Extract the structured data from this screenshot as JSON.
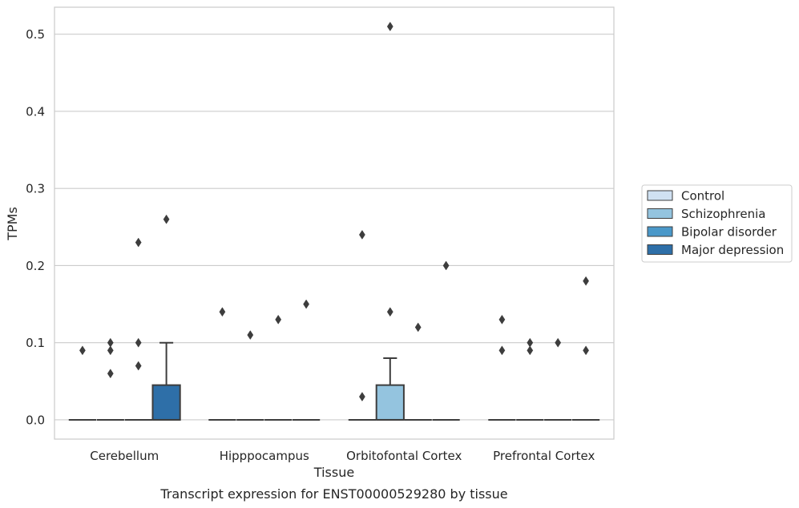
{
  "chart_data": {
    "type": "box",
    "xlabel": "Tissue",
    "ylabel": "TPMs",
    "caption": "Transcript expression for ENST00000529280 by tissue",
    "ylim": [
      -0.025,
      0.535
    ],
    "yticks": [
      "0.0",
      "0.1",
      "0.2",
      "0.3",
      "0.4",
      "0.5"
    ],
    "grid": true,
    "legend_position": "right",
    "categories": [
      "Cerebellum",
      "Hipppocampus",
      "Orbitofontal Cortex",
      "Prefrontal Cortex"
    ],
    "series": [
      {
        "name": "Control",
        "color": "#d0e1f2"
      },
      {
        "name": "Schizophrenia",
        "color": "#94c4df"
      },
      {
        "name": "Bipolar disorder",
        "color": "#4a98c9"
      },
      {
        "name": "Major depression",
        "color": "#2e6fa8"
      }
    ],
    "boxes": [
      {
        "category": 0,
        "series": 0,
        "q1": 0,
        "median": 0,
        "q3": 0,
        "whisker_low": 0,
        "whisker_high": 0,
        "outliers": [
          0.09
        ]
      },
      {
        "category": 0,
        "series": 1,
        "q1": 0,
        "median": 0,
        "q3": 0,
        "whisker_low": 0,
        "whisker_high": 0,
        "outliers": [
          0.1,
          0.09,
          0.06
        ]
      },
      {
        "category": 0,
        "series": 2,
        "q1": 0,
        "median": 0,
        "q3": 0,
        "whisker_low": 0,
        "whisker_high": 0,
        "outliers": [
          0.23,
          0.1,
          0.07
        ]
      },
      {
        "category": 0,
        "series": 3,
        "q1": 0,
        "median": 0,
        "q3": 0.045,
        "whisker_low": 0,
        "whisker_high": 0.1,
        "outliers": [
          0.26
        ]
      },
      {
        "category": 1,
        "series": 0,
        "q1": 0,
        "median": 0,
        "q3": 0,
        "whisker_low": 0,
        "whisker_high": 0,
        "outliers": [
          0.14
        ]
      },
      {
        "category": 1,
        "series": 1,
        "q1": 0,
        "median": 0,
        "q3": 0,
        "whisker_low": 0,
        "whisker_high": 0,
        "outliers": [
          0.11
        ]
      },
      {
        "category": 1,
        "series": 2,
        "q1": 0,
        "median": 0,
        "q3": 0,
        "whisker_low": 0,
        "whisker_high": 0,
        "outliers": [
          0.13
        ]
      },
      {
        "category": 1,
        "series": 3,
        "q1": 0,
        "median": 0,
        "q3": 0,
        "whisker_low": 0,
        "whisker_high": 0,
        "outliers": [
          0.15
        ]
      },
      {
        "category": 2,
        "series": 0,
        "q1": 0,
        "median": 0,
        "q3": 0,
        "whisker_low": 0,
        "whisker_high": 0,
        "outliers": [
          0.24,
          0.03
        ]
      },
      {
        "category": 2,
        "series": 1,
        "q1": 0,
        "median": 0,
        "q3": 0.045,
        "whisker_low": 0,
        "whisker_high": 0.08,
        "outliers": [
          0.51,
          0.14
        ]
      },
      {
        "category": 2,
        "series": 2,
        "q1": 0,
        "median": 0,
        "q3": 0,
        "whisker_low": 0,
        "whisker_high": 0,
        "outliers": [
          0.12
        ]
      },
      {
        "category": 2,
        "series": 3,
        "q1": 0,
        "median": 0,
        "q3": 0,
        "whisker_low": 0,
        "whisker_high": 0,
        "outliers": [
          0.2
        ]
      },
      {
        "category": 3,
        "series": 0,
        "q1": 0,
        "median": 0,
        "q3": 0,
        "whisker_low": 0,
        "whisker_high": 0,
        "outliers": [
          0.13,
          0.09
        ]
      },
      {
        "category": 3,
        "series": 1,
        "q1": 0,
        "median": 0,
        "q3": 0,
        "whisker_low": 0,
        "whisker_high": 0,
        "outliers": [
          0.1,
          0.09
        ]
      },
      {
        "category": 3,
        "series": 2,
        "q1": 0,
        "median": 0,
        "q3": 0,
        "whisker_low": 0,
        "whisker_high": 0,
        "outliers": [
          0.1
        ]
      },
      {
        "category": 3,
        "series": 3,
        "q1": 0,
        "median": 0,
        "q3": 0,
        "whisker_low": 0,
        "whisker_high": 0,
        "outliers": [
          0.18,
          0.09
        ]
      }
    ]
  }
}
